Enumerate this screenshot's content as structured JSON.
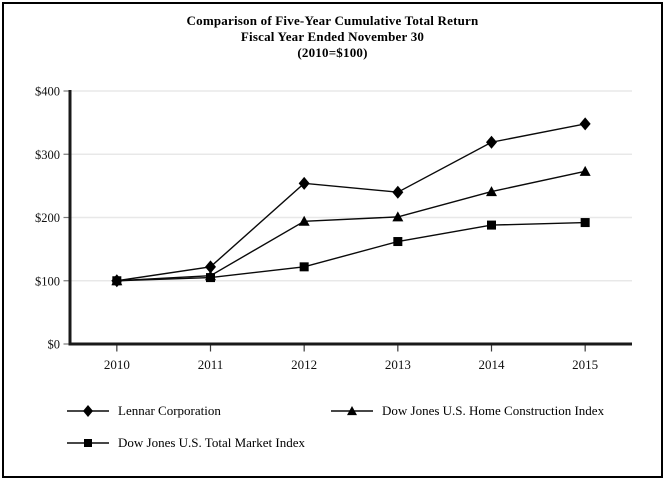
{
  "page": {
    "background": "#ffffff",
    "border_color": "#000000"
  },
  "title": {
    "line1": "Comparison of Five-Year Cumulative Total Return",
    "line2": "Fiscal Year Ended November 30",
    "line3": "(2010=$100)"
  },
  "chart_data": {
    "type": "line",
    "x": [
      "2010",
      "2011",
      "2012",
      "2013",
      "2014",
      "2015"
    ],
    "series": [
      {
        "name": "Lennar Corporation",
        "marker": "diamond",
        "color": "#000000",
        "values": [
          100,
          122,
          254,
          240,
          319,
          348
        ]
      },
      {
        "name": "Dow Jones U.S. Home Construction Index",
        "marker": "triangle",
        "color": "#000000",
        "values": [
          100,
          108,
          194,
          201,
          241,
          273
        ]
      },
      {
        "name": "Dow Jones U.S. Total Market Index",
        "marker": "square",
        "color": "#000000",
        "values": [
          100,
          105,
          122,
          162,
          188,
          192
        ]
      }
    ],
    "ylim": [
      0,
      400
    ],
    "yticks": [
      0,
      100,
      200,
      300,
      400
    ],
    "ytick_labels": [
      "$0",
      "$100",
      "$200",
      "$300",
      "$400"
    ],
    "xlabel": "",
    "ylabel": "",
    "grid": true,
    "gridline_color": "#e8e8e8",
    "axis_color": "#1a1a1a",
    "line_color": "#0a0a0a",
    "legend_position": "bottom"
  }
}
